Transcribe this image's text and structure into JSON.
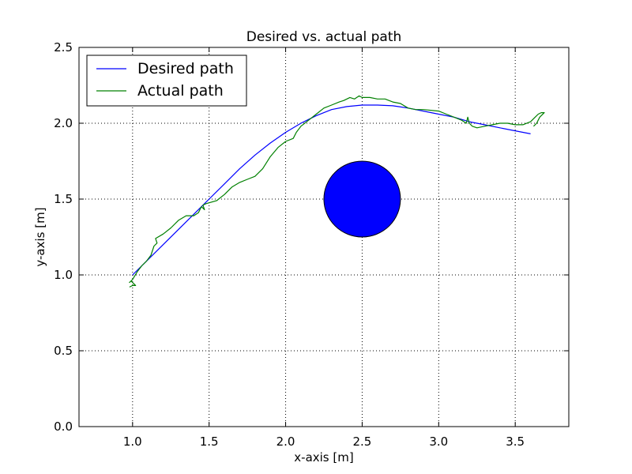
{
  "chart_data": {
    "type": "line",
    "title": "Desired vs. actual path",
    "xlabel": "x-axis [m]",
    "ylabel": "y-axis [m]",
    "xlim": [
      0.65,
      3.85
    ],
    "ylim": [
      0.0,
      2.5
    ],
    "xticks": [
      1.0,
      1.5,
      2.0,
      2.5,
      3.0,
      3.5
    ],
    "yticks": [
      0.0,
      0.5,
      1.0,
      1.5,
      2.0,
      2.5
    ],
    "xtick_labels": [
      "1.0",
      "1.5",
      "2.0",
      "2.5",
      "3.0",
      "3.5"
    ],
    "ytick_labels": [
      "0.0",
      "0.5",
      "1.0",
      "1.5",
      "2.0",
      "2.5"
    ],
    "grid": true,
    "legend_position": "top-left",
    "series": [
      {
        "name": "Desired path",
        "color": "#0000ff",
        "points": [
          [
            1.0,
            1.0
          ],
          [
            1.1,
            1.1
          ],
          [
            1.2,
            1.2
          ],
          [
            1.3,
            1.3
          ],
          [
            1.4,
            1.4
          ],
          [
            1.5,
            1.5
          ],
          [
            1.6,
            1.6
          ],
          [
            1.7,
            1.7
          ],
          [
            1.8,
            1.79
          ],
          [
            1.9,
            1.87
          ],
          [
            2.0,
            1.94
          ],
          [
            2.1,
            2.0
          ],
          [
            2.2,
            2.05
          ],
          [
            2.3,
            2.09
          ],
          [
            2.4,
            2.11
          ],
          [
            2.5,
            2.12
          ],
          [
            2.6,
            2.12
          ],
          [
            2.7,
            2.115
          ],
          [
            2.8,
            2.1
          ],
          [
            2.9,
            2.08
          ],
          [
            3.0,
            2.06
          ],
          [
            3.1,
            2.04
          ],
          [
            3.2,
            2.01
          ],
          [
            3.3,
            1.99
          ],
          [
            3.4,
            1.97
          ],
          [
            3.5,
            1.95
          ],
          [
            3.6,
            1.93
          ]
        ]
      },
      {
        "name": "Actual path",
        "color": "#008000",
        "points": [
          [
            0.98,
            0.92
          ],
          [
            1.0,
            0.93
          ],
          [
            1.02,
            0.93
          ],
          [
            0.99,
            0.96
          ],
          [
            0.98,
            0.95
          ],
          [
            1.0,
            0.97
          ],
          [
            1.03,
            1.02
          ],
          [
            1.06,
            1.06
          ],
          [
            1.09,
            1.09
          ],
          [
            1.12,
            1.13
          ],
          [
            1.14,
            1.19
          ],
          [
            1.16,
            1.21
          ],
          [
            1.15,
            1.24
          ],
          [
            1.2,
            1.27
          ],
          [
            1.25,
            1.31
          ],
          [
            1.3,
            1.36
          ],
          [
            1.35,
            1.39
          ],
          [
            1.4,
            1.39
          ],
          [
            1.43,
            1.41
          ],
          [
            1.45,
            1.45
          ],
          [
            1.47,
            1.43
          ],
          [
            1.46,
            1.46
          ],
          [
            1.48,
            1.47
          ],
          [
            1.55,
            1.49
          ],
          [
            1.6,
            1.53
          ],
          [
            1.65,
            1.58
          ],
          [
            1.7,
            1.61
          ],
          [
            1.75,
            1.63
          ],
          [
            1.8,
            1.65
          ],
          [
            1.85,
            1.7
          ],
          [
            1.9,
            1.78
          ],
          [
            1.95,
            1.84
          ],
          [
            2.0,
            1.88
          ],
          [
            2.05,
            1.9
          ],
          [
            2.07,
            1.94
          ],
          [
            2.1,
            1.98
          ],
          [
            2.15,
            2.02
          ],
          [
            2.2,
            2.06
          ],
          [
            2.25,
            2.1
          ],
          [
            2.3,
            2.12
          ],
          [
            2.35,
            2.14
          ],
          [
            2.38,
            2.15
          ],
          [
            2.42,
            2.17
          ],
          [
            2.45,
            2.16
          ],
          [
            2.48,
            2.18
          ],
          [
            2.5,
            2.17
          ],
          [
            2.55,
            2.17
          ],
          [
            2.6,
            2.16
          ],
          [
            2.65,
            2.16
          ],
          [
            2.7,
            2.14
          ],
          [
            2.75,
            2.13
          ],
          [
            2.8,
            2.1
          ],
          [
            2.85,
            2.09
          ],
          [
            2.9,
            2.09
          ],
          [
            3.0,
            2.08
          ],
          [
            3.05,
            2.06
          ],
          [
            3.1,
            2.04
          ],
          [
            3.15,
            2.02
          ],
          [
            3.18,
            2.0
          ],
          [
            3.19,
            2.04
          ],
          [
            3.2,
            2.0
          ],
          [
            3.22,
            1.98
          ],
          [
            3.25,
            1.97
          ],
          [
            3.3,
            1.98
          ],
          [
            3.35,
            1.99
          ],
          [
            3.4,
            2.0
          ],
          [
            3.45,
            2.0
          ],
          [
            3.5,
            1.99
          ],
          [
            3.55,
            1.99
          ],
          [
            3.6,
            2.01
          ],
          [
            3.63,
            2.04
          ],
          [
            3.65,
            2.06
          ],
          [
            3.67,
            2.07
          ],
          [
            3.69,
            2.07
          ],
          [
            3.66,
            2.04
          ],
          [
            3.64,
            2.0
          ],
          [
            3.62,
            1.98
          ]
        ]
      }
    ],
    "obstacle": {
      "center": [
        2.5,
        1.5
      ],
      "radius": 0.25,
      "fill": "#0000ff"
    }
  }
}
